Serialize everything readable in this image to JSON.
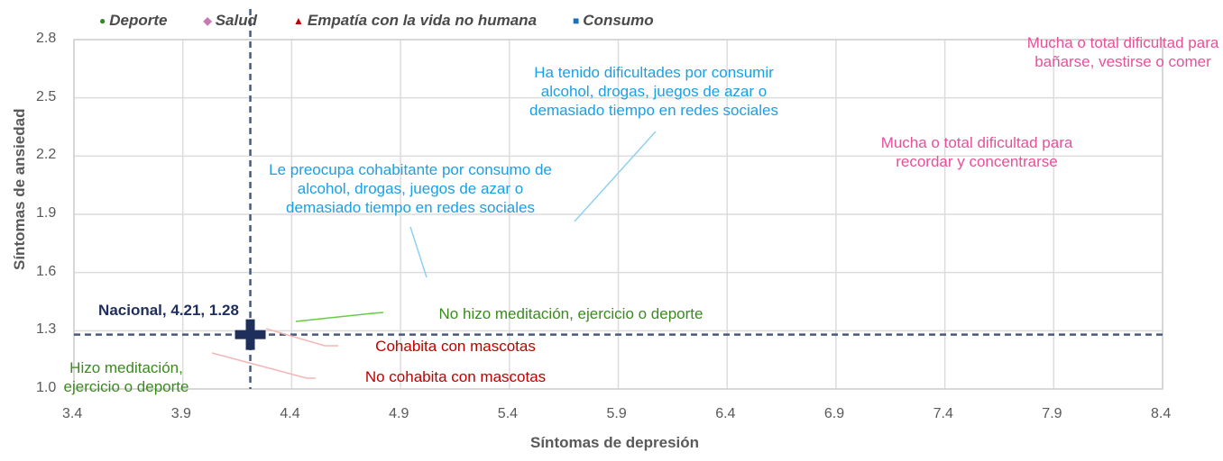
{
  "chart_data": {
    "type": "scatter",
    "xlabel": "Síntomas de depresión",
    "ylabel": "Síntomas de ansiedad",
    "xlim": [
      3.4,
      8.4
    ],
    "ylim": [
      1.0,
      2.8
    ],
    "xticks": [
      "3.4",
      "3.9",
      "4.4",
      "4.9",
      "5.4",
      "5.9",
      "6.4",
      "6.9",
      "7.4",
      "7.9",
      "8.4"
    ],
    "yticks": [
      "1.0",
      "1.3",
      "1.6",
      "1.9",
      "2.2",
      "2.5",
      "2.8"
    ],
    "grid": true,
    "legend_position": "top",
    "legend": [
      {
        "name": "Deporte",
        "color": "#2e8b1e",
        "marker": "circle"
      },
      {
        "name": "Salud",
        "color": "#c879b4",
        "marker": "diamond"
      },
      {
        "name": "Empatía con la vida no humana",
        "color": "#c00000",
        "marker": "triangle"
      },
      {
        "name": "Consumo",
        "color": "#1f6fb5",
        "marker": "square"
      }
    ],
    "reference": {
      "label": "Nacional, 4.21, 1.28",
      "x": 4.21,
      "y": 1.28,
      "color": "#1f2f5c"
    },
    "points": [
      {
        "series": "Deporte",
        "label": "No hizo meditación, ejercicio o deporte",
        "x": 4.42,
        "y": 1.35,
        "color": "#3a8a1e"
      },
      {
        "series": "Deporte",
        "label": "Hizo meditación,\nejercicio o deporte",
        "x": 3.6,
        "y": 1.05,
        "color": "#3a8a1e"
      },
      {
        "series": "Empatía con la vida no humana",
        "label": "Cohabita con mascotas",
        "x": 4.28,
        "y": 1.31,
        "color": "#c00000"
      },
      {
        "series": "Empatía con la vida no humana",
        "label": "No cohabita con mascotas",
        "x": 4.03,
        "y": 1.19,
        "color": "#c00000"
      },
      {
        "series": "Consumo",
        "label": "Le preocupa cohabitante por consumo de\nalcohol, drogas, juegos de azar o\ndemasiado tiempo en redes sociales",
        "x": 4.99,
        "y": 1.58,
        "color": "#1aa0e6"
      },
      {
        "series": "Consumo",
        "label": "Ha tenido dificultades por consumir\nalcohol, drogas, juegos de azar o\ndemasiado tiempo en redes sociales",
        "x": 5.7,
        "y": 1.86,
        "color": "#1aa0e6"
      },
      {
        "series": "Salud",
        "label": "Mucha o total dificultad para\nrecordar y concentrarse",
        "x": 7.2,
        "y": 2.2,
        "color": "#e8509a"
      },
      {
        "series": "Salud",
        "label": "Mucha o total dificultad para\nbañarse, vestirse o comer",
        "x": 8.0,
        "y": 2.75,
        "color": "#e8509a"
      }
    ]
  }
}
